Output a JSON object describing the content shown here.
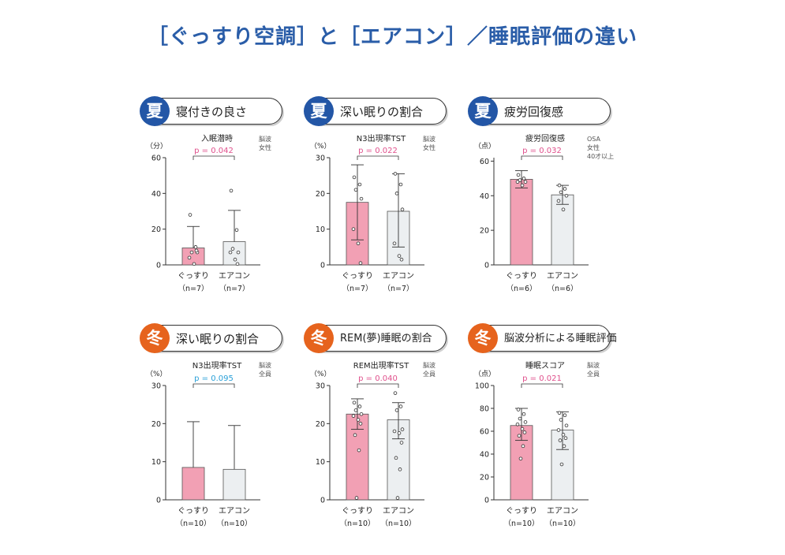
{
  "page": {
    "title": "［ぐっすり空調］と［エアコン］／睡眠評価の違い"
  },
  "colors": {
    "title": "#2a5da8",
    "summer": "#2356a6",
    "winter": "#e6631d",
    "gussuri_bar": "#f2a0b4",
    "aircon_bar": "#eceff1",
    "p_sig": "#e0508c",
    "p_ns": "#2aa0d8"
  },
  "panels": [
    {
      "season_glyph": "夏",
      "season": "summer",
      "pill_label": "寝付きの良さ",
      "note_lines": [
        "脳波",
        "女性"
      ],
      "chart_data": {
        "type": "bar",
        "title": "入眠潜時",
        "ylabel": "（分）",
        "categories": [
          "ぐっすり",
          "エアコン"
        ],
        "sample_sizes": [
          "（n=7）",
          "（n=7）"
        ],
        "values": [
          9.5,
          13
        ],
        "error_upper": [
          21.5,
          30.5
        ],
        "points": [
          [
            28,
            10,
            7,
            7,
            4,
            0.5,
            8
          ],
          [
            41.5,
            19.5,
            9,
            7,
            7,
            3,
            0.5
          ]
        ],
        "ylim": [
          0,
          60
        ],
        "yticks": [
          "0",
          "20",
          "40",
          "60"
        ],
        "p_value": "p = 0.042",
        "significant": true
      }
    },
    {
      "season_glyph": "夏",
      "season": "summer",
      "pill_label": "深い眠りの割合",
      "note_lines": [
        "脳波",
        "女性"
      ],
      "chart_data": {
        "type": "bar",
        "title": "N3出現率TST",
        "ylabel": "（%）",
        "categories": [
          "ぐっすり",
          "エアコン"
        ],
        "sample_sizes": [
          "（n=7）",
          "（n=7）"
        ],
        "values": [
          17.5,
          15
        ],
        "error_upper": [
          28,
          25.5
        ],
        "error_lower": [
          7,
          5
        ],
        "points": [
          [
            24.5,
            22.5,
            21,
            18.5,
            10,
            6,
            0.5
          ],
          [
            25.5,
            22.5,
            20,
            15.5,
            6,
            2.5,
            1.5
          ]
        ],
        "ylim": [
          0,
          30
        ],
        "yticks": [
          "0",
          "10",
          "20",
          "30"
        ],
        "p_value": "p = 0.022",
        "significant": true
      }
    },
    {
      "season_glyph": "夏",
      "season": "summer",
      "pill_label": "疲労回復感",
      "note_lines": [
        "OSA",
        "女性",
        "40才以上"
      ],
      "chart_data": {
        "type": "bar",
        "title": "疲労回復感",
        "ylabel": "（点）",
        "categories": [
          "ぐっすり",
          "エアコン"
        ],
        "sample_sizes": [
          "（n=6）",
          "（n=6）"
        ],
        "values": [
          49.5,
          40.5
        ],
        "error_upper": [
          54.5,
          46
        ],
        "error_lower": [
          44.5,
          35
        ],
        "points": [
          [
            52,
            50,
            49,
            48,
            48,
            46
          ],
          [
            46,
            44,
            42,
            40,
            37,
            32
          ]
        ],
        "ylim": [
          0,
          62
        ],
        "yticks": [
          "0",
          "20",
          "40",
          "60"
        ],
        "p_value": "p = 0.032",
        "significant": true
      }
    },
    {
      "season_glyph": "冬",
      "season": "winter",
      "pill_label": "深い眠りの割合",
      "note_lines": [
        "脳波",
        "全員"
      ],
      "chart_data": {
        "type": "bar",
        "title": "N3出現率TST",
        "ylabel": "（%）",
        "categories": [
          "ぐっすり",
          "エアコン"
        ],
        "sample_sizes": [
          "（n=10）",
          "（n=10）"
        ],
        "values": [
          8.5,
          8
        ],
        "error_upper": [
          20.5,
          19.5
        ],
        "points": [
          [],
          []
        ],
        "ylim": [
          0,
          30
        ],
        "yticks": [
          "0",
          "10",
          "20",
          "30"
        ],
        "p_value": "p = 0.095",
        "significant": false
      }
    },
    {
      "season_glyph": "冬",
      "season": "winter",
      "pill_label": "REM(夢)睡眠の割合",
      "note_lines": [
        "脳波",
        "全員"
      ],
      "chart_data": {
        "type": "bar",
        "title": "REM出現率TST",
        "ylabel": "（%）",
        "categories": [
          "ぐっすり",
          "エアコン"
        ],
        "sample_sizes": [
          "（n=10）",
          "（n=10）"
        ],
        "values": [
          22.5,
          21
        ],
        "error_upper": [
          26.5,
          25.5
        ],
        "error_lower": [
          18.5,
          16
        ],
        "points": [
          [
            25.5,
            24.5,
            23.5,
            22.5,
            22,
            21,
            20,
            17,
            13,
            0.5
          ],
          [
            28,
            24.5,
            23.5,
            18.5,
            18,
            17.5,
            15,
            11,
            8,
            0.5
          ]
        ],
        "ylim": [
          0,
          30
        ],
        "yticks": [
          "0",
          "10",
          "20",
          "30"
        ],
        "p_value": "p = 0.040",
        "significant": true
      }
    },
    {
      "season_glyph": "冬",
      "season": "winter",
      "pill_label": "脳波分析による睡眠評価",
      "note_lines": [
        "脳波",
        "全員"
      ],
      "chart_data": {
        "type": "bar",
        "title": "睡眠スコア",
        "ylabel": "（点）",
        "categories": [
          "ぐっすり",
          "エアコン"
        ],
        "sample_sizes": [
          "（n=10）",
          "（n=10）"
        ],
        "values": [
          65,
          61
        ],
        "error_upper": [
          80,
          77
        ],
        "error_lower": [
          52,
          44
        ],
        "points": [
          [
            79,
            75,
            71,
            68,
            66,
            62,
            59,
            56,
            47,
            36
          ],
          [
            76,
            74,
            70,
            65,
            61,
            57,
            54,
            52,
            47,
            31
          ]
        ],
        "ylim": [
          0,
          100
        ],
        "yticks": [
          "0",
          "20",
          "40",
          "60",
          "80",
          "100"
        ],
        "p_value": "p = 0.021",
        "significant": true
      }
    }
  ]
}
